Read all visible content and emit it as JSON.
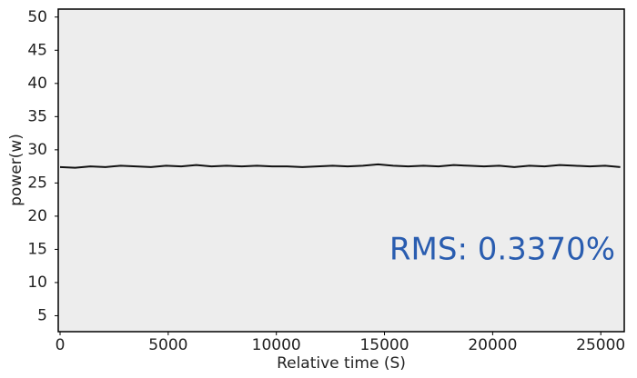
{
  "chart_data": {
    "type": "line",
    "xlabel": "Relative time (S)",
    "ylabel": "power(w)",
    "annotation": "RMS: 0.3370%",
    "x": [
      0,
      700,
      1400,
      2100,
      2800,
      3500,
      4200,
      4900,
      5600,
      6300,
      7000,
      7700,
      8400,
      9100,
      9800,
      10500,
      11200,
      11900,
      12600,
      13300,
      14000,
      14700,
      15400,
      16100,
      16800,
      17500,
      18200,
      18900,
      19600,
      20300,
      21000,
      21700,
      22400,
      23100,
      23800,
      24500,
      25200,
      25900
    ],
    "series": [
      {
        "name": "power",
        "color": "#111111",
        "values": [
          27.4,
          27.3,
          27.5,
          27.4,
          27.6,
          27.5,
          27.4,
          27.6,
          27.5,
          27.7,
          27.5,
          27.6,
          27.5,
          27.6,
          27.5,
          27.5,
          27.4,
          27.5,
          27.6,
          27.5,
          27.6,
          27.8,
          27.6,
          27.5,
          27.6,
          27.5,
          27.7,
          27.6,
          27.5,
          27.6,
          27.4,
          27.6,
          27.5,
          27.7,
          27.6,
          27.5,
          27.6,
          27.4
        ]
      }
    ],
    "xlim": [
      0,
      26000
    ],
    "xticks": [
      0,
      5000,
      10000,
      15000,
      20000,
      25000
    ],
    "ylim": [
      2.6,
      51.2
    ],
    "yticks": [
      5,
      10,
      15,
      20,
      25,
      30,
      35,
      40,
      45,
      50
    ]
  }
}
